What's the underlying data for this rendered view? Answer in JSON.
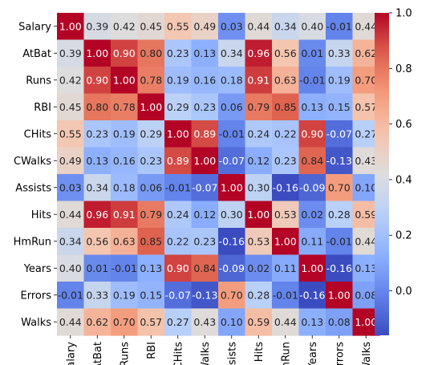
{
  "chart_data": {
    "type": "heatmap",
    "title": "",
    "rows": [
      "Salary",
      "AtBat",
      "Runs",
      "RBI",
      "CHits",
      "CWalks",
      "Assists",
      "Hits",
      "HmRun",
      "Years",
      "Errors",
      "Walks"
    ],
    "columns": [
      "Salary",
      "AtBat",
      "Runs",
      "RBI",
      "CHits",
      "CWalks",
      "Assists",
      "Hits",
      "HmRun",
      "Years",
      "Errors",
      "Walks"
    ],
    "values": [
      [
        1.0,
        0.39,
        0.42,
        0.45,
        0.55,
        0.49,
        0.03,
        0.44,
        0.34,
        0.4,
        -0.01,
        0.44
      ],
      [
        0.39,
        1.0,
        0.9,
        0.8,
        0.23,
        0.13,
        0.34,
        0.96,
        0.56,
        0.01,
        0.33,
        0.62
      ],
      [
        0.42,
        0.9,
        1.0,
        0.78,
        0.19,
        0.16,
        0.18,
        0.91,
        0.63,
        -0.01,
        0.19,
        0.7
      ],
      [
        0.45,
        0.8,
        0.78,
        1.0,
        0.29,
        0.23,
        0.06,
        0.79,
        0.85,
        0.13,
        0.15,
        0.57
      ],
      [
        0.55,
        0.23,
        0.19,
        0.29,
        1.0,
        0.89,
        -0.01,
        0.24,
        0.22,
        0.9,
        -0.07,
        0.27
      ],
      [
        0.49,
        0.13,
        0.16,
        0.23,
        0.89,
        1.0,
        -0.07,
        0.12,
        0.23,
        0.84,
        -0.13,
        0.43
      ],
      [
        0.03,
        0.34,
        0.18,
        0.06,
        -0.01,
        -0.07,
        1.0,
        0.3,
        -0.16,
        -0.09,
        0.7,
        0.1
      ],
      [
        0.44,
        0.96,
        0.91,
        0.79,
        0.24,
        0.12,
        0.3,
        1.0,
        0.53,
        0.02,
        0.28,
        0.59
      ],
      [
        0.34,
        0.56,
        0.63,
        0.85,
        0.22,
        0.23,
        -0.16,
        0.53,
        1.0,
        0.11,
        -0.01,
        0.44
      ],
      [
        0.4,
        0.01,
        -0.01,
        0.13,
        0.9,
        0.84,
        -0.09,
        0.02,
        0.11,
        1.0,
        -0.16,
        0.13
      ],
      [
        -0.01,
        0.33,
        0.19,
        0.15,
        -0.07,
        -0.13,
        0.7,
        0.28,
        -0.01,
        -0.16,
        1.0,
        0.08
      ],
      [
        0.44,
        0.62,
        0.7,
        0.57,
        0.27,
        0.43,
        0.1,
        0.59,
        0.44,
        0.13,
        0.08,
        1.0
      ]
    ],
    "colormap": "coolwarm",
    "vmin": -0.16,
    "vmax": 1.0,
    "colorbar_ticks": [
      "0.0",
      "0.2",
      "0.4",
      "0.6",
      "0.8",
      "1.0"
    ],
    "colorbar_tick_values": [
      0.0,
      0.2,
      0.4,
      0.6,
      0.8,
      1.0
    ],
    "annotation_format": "2 decimals"
  }
}
